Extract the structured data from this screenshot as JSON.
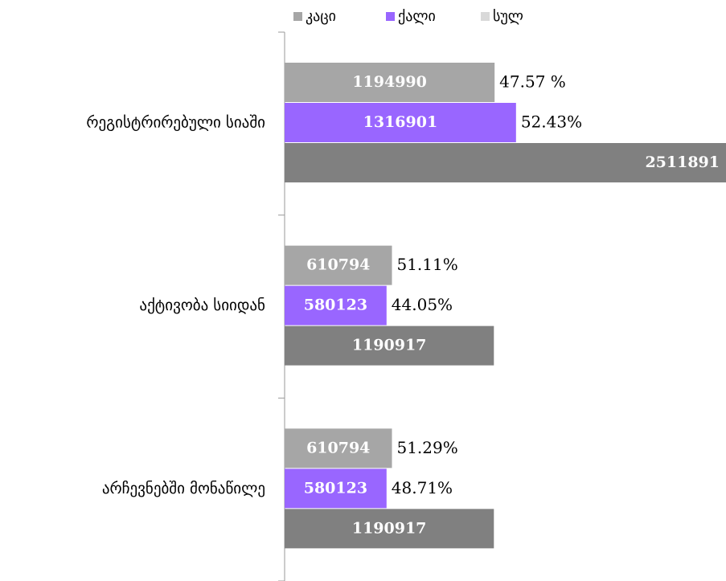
{
  "chart_data": {
    "type": "hbar",
    "categories": [
      "რეგისტრირებული სიაში",
      "აქტივობა სიიდან",
      "არჩევნებში მონაწილე"
    ],
    "series": [
      {
        "name": "კაცი",
        "color": "#a6a6a6",
        "values": [
          1194990,
          610794,
          610794
        ],
        "percent_labels": [
          "47.57 %",
          "51.11%",
          "51.29%"
        ]
      },
      {
        "name": "ქალი",
        "color": "#9966ff",
        "values": [
          1316901,
          580123,
          580123
        ],
        "percent_labels": [
          "52.43%",
          "44.05%",
          "48.71%"
        ]
      },
      {
        "name": "სულ",
        "color": "#808080",
        "values": [
          2511891,
          1190917,
          1190917
        ]
      }
    ],
    "xlim": [
      0,
      2511891
    ],
    "legend": "top"
  }
}
